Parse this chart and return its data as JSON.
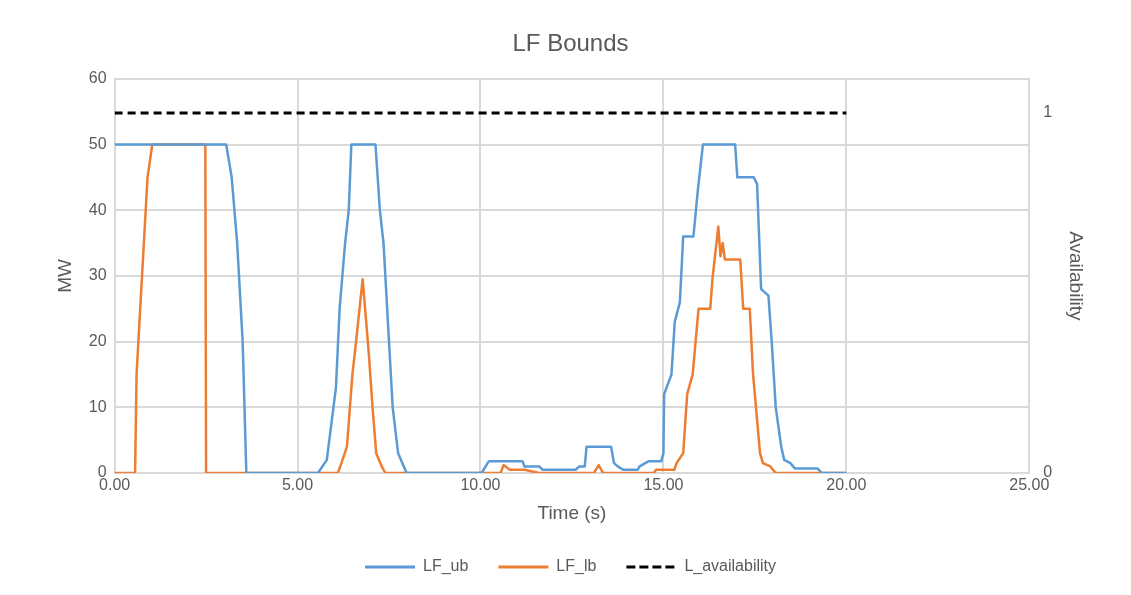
{
  "chart_data": {
    "type": "line",
    "title": "LF Bounds",
    "xlabel": "Time (s)",
    "ylabel": "MW",
    "y2label": "Availability",
    "xlim": [
      0,
      25
    ],
    "xticks": [
      {
        "value": 0,
        "label": "0.00"
      },
      {
        "value": 5,
        "label": "5.00"
      },
      {
        "value": 10,
        "label": "10.00"
      },
      {
        "value": 15,
        "label": "15.00"
      },
      {
        "value": 20,
        "label": "20.00"
      },
      {
        "value": 25,
        "label": "25.00"
      }
    ],
    "ylim": [
      0,
      60
    ],
    "yticks": [
      0,
      10,
      20,
      30,
      40,
      50,
      60
    ],
    "y2lim": [
      0,
      1.095
    ],
    "y2ticks": [
      0,
      1
    ],
    "grid": true,
    "legend": "bottom",
    "marker": "none",
    "series": [
      {
        "name": "LF_ub",
        "color": "#5b9bd5",
        "line_style": "solid",
        "x": [
          0,
          3.05,
          3.2,
          3.35,
          3.5,
          3.55,
          3.6,
          5.56,
          5.8,
          6.05,
          6.15,
          6.3,
          6.4,
          6.47,
          7.13,
          7.25,
          7.35,
          7.5,
          7.6,
          7.75,
          7.98,
          10.03,
          10.23,
          11.15,
          11.2,
          11.6,
          11.7,
          12.6,
          12.7,
          12.85,
          12.9,
          13.57,
          13.65,
          13.75,
          13.9,
          14.3,
          14.35,
          14.6,
          14.94,
          15.0,
          15.02,
          15.22,
          15.31,
          15.45,
          15.54,
          15.82,
          15.94,
          16.08,
          16.96,
          17.02,
          17.47,
          17.56,
          17.67,
          17.87,
          17.96,
          18.07,
          18.22,
          18.3,
          18.47,
          18.59,
          19.21,
          19.33,
          20
        ],
        "values": [
          50,
          50,
          45,
          35,
          20,
          10,
          0,
          0,
          2,
          13,
          25,
          35,
          40,
          50,
          50,
          40,
          35,
          20,
          10,
          3,
          0,
          0,
          1.8,
          1.8,
          1,
          1,
          0.5,
          0.5,
          1,
          1,
          4,
          4,
          1.5,
          1,
          0.5,
          0.5,
          1,
          1.8,
          1.8,
          3,
          12,
          15,
          23,
          26,
          36,
          36,
          43,
          50,
          50,
          45,
          45,
          44,
          28,
          27,
          20,
          10,
          4,
          2,
          1.5,
          0.7,
          0.7,
          0,
          0
        ]
      },
      {
        "name": "LF_lb",
        "color": "#ed7d31",
        "line_style": "solid",
        "x": [
          0,
          0.56,
          0.6,
          0.75,
          0.9,
          1.03,
          2.48,
          2.5,
          6.1,
          6.2,
          6.35,
          6.5,
          6.6,
          6.78,
          6.95,
          7.05,
          7.15,
          7.3,
          7.4,
          10.55,
          10.63,
          10.8,
          11.2,
          11.6,
          13.1,
          13.23,
          13.35,
          14.74,
          14.8,
          15.3,
          15.36,
          15.54,
          15.65,
          15.8,
          15.88,
          15.96,
          16.28,
          16.34,
          16.4,
          16.5,
          16.56,
          16.62,
          16.68,
          17.1,
          17.18,
          17.36,
          17.45,
          17.53,
          17.64,
          17.72,
          17.92,
          18.07,
          20
        ],
        "values": [
          0,
          0,
          15,
          30,
          45,
          50,
          50,
          0,
          0,
          1.5,
          4,
          15,
          20,
          29.5,
          18,
          10,
          3,
          1,
          0,
          0,
          1.2,
          0.5,
          0.5,
          0,
          0,
          1.2,
          0,
          0,
          0.5,
          0.5,
          1.5,
          3,
          12,
          15,
          20,
          25,
          25,
          29.5,
          32.5,
          37.5,
          33,
          35,
          32.5,
          32.5,
          25,
          25,
          15,
          10,
          3,
          1.5,
          1,
          0,
          0
        ]
      },
      {
        "name": "L_availability",
        "color": "#000000",
        "line_style": "dashed",
        "axis": "y2",
        "x": [
          0,
          20
        ],
        "values": [
          1,
          1
        ]
      }
    ]
  }
}
